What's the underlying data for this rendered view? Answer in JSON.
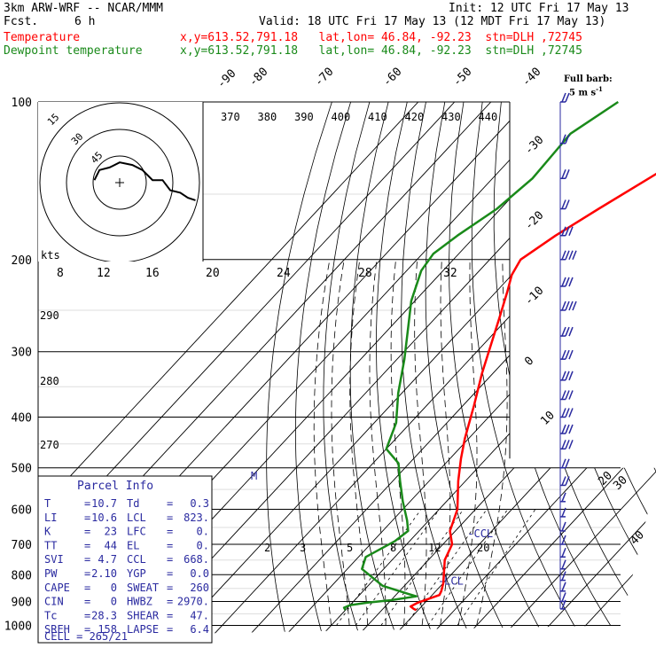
{
  "header": {
    "model": "3km ARW-WRF -- NCAR/MMM",
    "init": "Init: 12 UTC Fri 17 May 13",
    "fcst_label": "Fcst.",
    "fcst_value": "6 h",
    "valid": "Valid: 18 UTC Fri 17 May 13 (12 MDT Fri 17 May 13)",
    "temp_label": "Temperature",
    "temp_info": "x,y=613.52,791.18   lat,lon= 46.84, -92.23  stn=DLH ,72745",
    "dew_label": "Dewpoint temperature",
    "dew_info": "x,y=613.52,791.18   lat,lon= 46.84, -92.23  stn=DLH ,72745",
    "full_barb_label": "Full barb:",
    "full_barb_value": "5 m s",
    "full_barb_unit_exp": "-1"
  },
  "colors": {
    "temperature": "#ff0000",
    "dewpoint": "#1a8a1a",
    "parcel_text": "#2a2aa0",
    "wind": "#2a2aa0",
    "grid": "#000000"
  },
  "chart_data": {
    "type": "line",
    "subtype": "skew-T log-p sounding",
    "pressure_levels_hPa": [
      100,
      200,
      300,
      400,
      500,
      600,
      700,
      800,
      900,
      1000
    ],
    "pressure_range_hPa": [
      100,
      1000
    ],
    "isotherm_labels": [
      "-90",
      "-80",
      "-70",
      "-60",
      "-50",
      "-40",
      "-30",
      "-20",
      "-10",
      "0",
      "10",
      "20",
      "30",
      "40"
    ],
    "theta_labels_top": [
      "370",
      "380",
      "390",
      "400",
      "410",
      "420",
      "430",
      "440"
    ],
    "theta_labels_left": [
      "290",
      "280",
      "270"
    ],
    "mixing_ratio_labels": [
      "2",
      "3",
      "5",
      "8",
      "12",
      "20"
    ],
    "hodograph": {
      "speed_unit": "kts",
      "ring_labels": [
        "15",
        "30",
        "45"
      ],
      "axis_labels": [
        "8",
        "12",
        "16",
        "20",
        "24",
        "28",
        "32"
      ],
      "trace_uv_kts": [
        [
          -10,
          1
        ],
        [
          -8,
          5
        ],
        [
          -4,
          6
        ],
        [
          0,
          8
        ],
        [
          5,
          7
        ],
        [
          9,
          5
        ],
        [
          13,
          1
        ],
        [
          17,
          1
        ],
        [
          20,
          -3
        ],
        [
          24,
          -4
        ],
        [
          27,
          -6
        ],
        [
          30,
          -7
        ]
      ]
    },
    "series": [
      {
        "name": "Temperature",
        "color": "#ff0000",
        "points_T_C_p_hPa": [
          [
            -27.5,
            100
          ],
          [
            -28.5,
            112
          ],
          [
            -32,
            125
          ],
          [
            -37,
            140
          ],
          [
            -43,
            160
          ],
          [
            -48,
            180
          ],
          [
            -51.5,
            200
          ],
          [
            -50,
            214
          ],
          [
            -47,
            230
          ],
          [
            -42.5,
            258
          ],
          [
            -38,
            290
          ],
          [
            -33,
            330
          ],
          [
            -27,
            380
          ],
          [
            -21,
            440
          ],
          [
            -17,
            480
          ],
          [
            -12,
            530
          ],
          [
            -5,
            600
          ],
          [
            -1.5,
            660
          ],
          [
            2.5,
            700
          ],
          [
            4.5,
            750
          ],
          [
            8,
            800
          ],
          [
            10,
            830
          ],
          [
            11.5,
            860
          ],
          [
            12,
            875
          ],
          [
            10,
            890
          ],
          [
            8,
            905
          ],
          [
            7,
            920
          ],
          [
            8.5,
            930
          ],
          [
            9.5,
            935
          ]
        ]
      },
      {
        "name": "Dewpoint temperature",
        "color": "#1a8a1a",
        "points_T_C_p_hPa": [
          [
            -65,
            100
          ],
          [
            -70,
            115
          ],
          [
            -69,
            140
          ],
          [
            -71,
            160
          ],
          [
            -75,
            180
          ],
          [
            -77,
            195
          ],
          [
            -76,
            210
          ],
          [
            -71,
            240
          ],
          [
            -65,
            270
          ],
          [
            -58,
            310
          ],
          [
            -51,
            360
          ],
          [
            -44,
            410
          ],
          [
            -40,
            460
          ],
          [
            -33,
            490
          ],
          [
            -28,
            530
          ],
          [
            -22,
            580
          ],
          [
            -16,
            630
          ],
          [
            -13,
            660
          ],
          [
            -14,
            690
          ],
          [
            -18,
            740
          ],
          [
            -16,
            780
          ],
          [
            -6,
            840
          ],
          [
            3,
            870
          ],
          [
            6,
            880
          ],
          [
            0,
            895
          ],
          [
            -6,
            905
          ],
          [
            -10,
            915
          ],
          [
            -11,
            925
          ],
          [
            -10,
            935
          ]
        ]
      }
    ],
    "markers": {
      "CCL": {
        "label": "-CCL",
        "p_hPa": 668,
        "T_C": 4
      },
      "LCL": {
        "label": "-LCL",
        "p_hPa": 823,
        "T_C": 8
      }
    },
    "winds": [
      {
        "p_hPa": 100,
        "barbs": 2
      },
      {
        "p_hPa": 120,
        "barbs": 2
      },
      {
        "p_hPa": 140,
        "barbs": 2
      },
      {
        "p_hPa": 160,
        "barbs": 2
      },
      {
        "p_hPa": 180,
        "barbs": 3
      },
      {
        "p_hPa": 200,
        "barbs": 4
      },
      {
        "p_hPa": 225,
        "barbs": 3
      },
      {
        "p_hPa": 250,
        "barbs": 4
      },
      {
        "p_hPa": 280,
        "barbs": 3
      },
      {
        "p_hPa": 310,
        "barbs": 3
      },
      {
        "p_hPa": 340,
        "barbs": 3
      },
      {
        "p_hPa": 370,
        "barbs": 3
      },
      {
        "p_hPa": 400,
        "barbs": 3
      },
      {
        "p_hPa": 430,
        "barbs": 3
      },
      {
        "p_hPa": 460,
        "barbs": 3
      },
      {
        "p_hPa": 500,
        "barbs": 2
      },
      {
        "p_hPa": 540,
        "barbs": 2
      },
      {
        "p_hPa": 580,
        "barbs": 1
      },
      {
        "p_hPa": 620,
        "barbs": 1
      },
      {
        "p_hPa": 660,
        "barbs": 1
      },
      {
        "p_hPa": 700,
        "barbs": 1
      },
      {
        "p_hPa": 740,
        "barbs": 1
      },
      {
        "p_hPa": 780,
        "barbs": 1
      },
      {
        "p_hPa": 820,
        "barbs": 1
      },
      {
        "p_hPa": 860,
        "barbs": 1
      },
      {
        "p_hPa": 900,
        "barbs": 1
      },
      {
        "p_hPa": 930,
        "barbs": 1
      }
    ]
  },
  "parcel_info": {
    "title": "Parcel Info",
    "rows": [
      {
        "k1": "T",
        "v1": "10.7",
        "k2": "Td",
        "v2": "0.3"
      },
      {
        "k1": "LI",
        "v1": "10.6",
        "k2": "LCL",
        "v2": "823."
      },
      {
        "k1": "K",
        "v1": "23",
        "k2": "LFC",
        "v2": "0."
      },
      {
        "k1": "TT",
        "v1": "44",
        "k2": "EL",
        "v2": "0."
      },
      {
        "k1": "SVI",
        "v1": "4.7",
        "k2": "CCL",
        "v2": "668."
      },
      {
        "k1": "PW",
        "v1": "2.10",
        "k2": "YGP",
        "v2": "0.0"
      },
      {
        "k1": "CAPE",
        "v1": "0",
        "k2": "SWEAT",
        "v2": "260"
      },
      {
        "k1": "CIN",
        "v1": "0",
        "k2": "HWBZ",
        "v2": "2970."
      },
      {
        "k1": "Tc",
        "v1": "28.3",
        "k2": "SHEAR",
        "v2": "47."
      },
      {
        "k1": "SREH",
        "v1": "158",
        "k2": "LAPSE",
        "v2": "6.4"
      }
    ],
    "cell": "CELL = 265/21"
  }
}
